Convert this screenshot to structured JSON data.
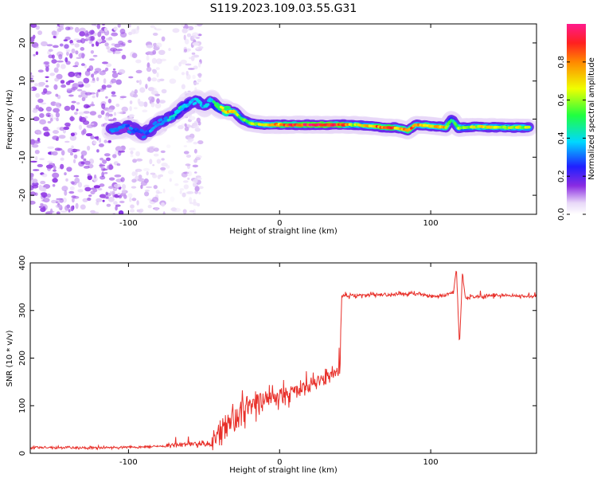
{
  "title": "S119.2023.109.03.55.G31",
  "colors": {
    "snr_line": "#e8302a",
    "frame": "#000000",
    "background": "#ffffff"
  },
  "chart_data": [
    {
      "type": "heatmap",
      "name": "spectrogram",
      "xlabel": "Height of straight line (km)",
      "ylabel": "Frequency (Hz)",
      "xlim": [
        -165,
        170
      ],
      "ylim": [
        -25,
        25
      ],
      "x_ticks": [
        -100,
        0,
        100
      ],
      "y_ticks": [
        -20,
        -10,
        0,
        10,
        20
      ],
      "colorbar": {
        "label": "Normalized spectral amplitude",
        "range": [
          0.0,
          1.0
        ],
        "ticks": [
          "0.0",
          "0.2",
          "0.4",
          "0.6",
          "0.8"
        ],
        "tick_values": [
          0.0,
          0.2,
          0.4,
          0.6,
          0.8
        ]
      },
      "ridge": {
        "description_values": "dominant frequency vs height",
        "x": [
          -112,
          -100,
          -90,
          -80,
          -70,
          -60,
          -55,
          -50,
          -45,
          -40,
          -35,
          -30,
          -25,
          -20,
          -10,
          0,
          10,
          20,
          30,
          40,
          50,
          60,
          70,
          78,
          85,
          90,
          100,
          110,
          114,
          118,
          130,
          150,
          165
        ],
        "y": [
          -3,
          -2,
          -4,
          -1,
          1,
          4,
          5,
          3,
          5,
          3,
          2,
          2,
          0,
          -1,
          -1.5,
          -1.5,
          -1.5,
          -1.5,
          -1.5,
          -1.5,
          -1.5,
          -1.8,
          -2.2,
          -2.3,
          -3,
          -1.5,
          -1.8,
          -2.2,
          0,
          -2.3,
          -2,
          -2.2,
          -2.2
        ],
        "amplitude": [
          0.3,
          0.3,
          0.3,
          0.35,
          0.4,
          0.4,
          0.35,
          0.35,
          0.4,
          0.55,
          0.8,
          0.7,
          0.5,
          0.6,
          0.7,
          0.8,
          0.85,
          0.95,
          0.95,
          0.85,
          0.6,
          0.7,
          0.9,
          0.7,
          0.8,
          0.75,
          0.7,
          0.7,
          0.4,
          0.6,
          0.65,
          0.65,
          0.6
        ]
      }
    },
    {
      "type": "line",
      "name": "snr",
      "xlabel": "Height of straight line (km)",
      "ylabel": "SNR (10 * v/v)",
      "xlim": [
        -165,
        170
      ],
      "ylim": [
        0,
        400
      ],
      "x_ticks": [
        -100,
        0,
        100
      ],
      "y_ticks": [
        0,
        100,
        200,
        300,
        400
      ],
      "anchors": {
        "x": [
          -165,
          -110,
          -75,
          -60,
          -45,
          -30,
          -20,
          -10,
          0,
          10,
          20,
          30,
          40,
          41,
          50,
          70,
          90,
          100,
          110,
          115,
          117,
          119,
          121,
          123,
          130,
          150,
          170
        ],
        "y": [
          12,
          12,
          15,
          20,
          20,
          75,
          100,
          110,
          120,
          130,
          145,
          160,
          175,
          330,
          332,
          333,
          335,
          330,
          332,
          340,
          390,
          225,
          380,
          325,
          330,
          332,
          330
        ]
      }
    }
  ]
}
